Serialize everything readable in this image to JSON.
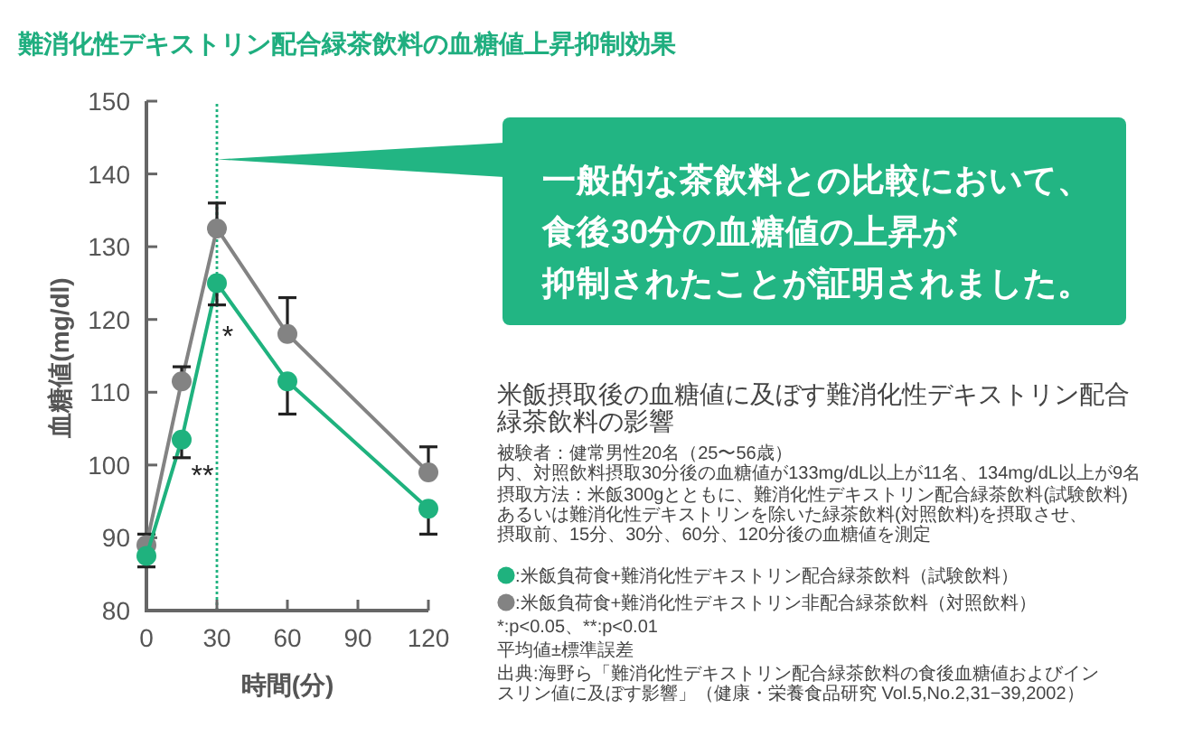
{
  "chart_data": {
    "type": "line",
    "title": "難消化性デキストリン配合緑茶飲料の血糖値上昇抑制効果",
    "subtitle": "米飯摂取後の血糖値に及ぼす難消化性デキストリン配合緑茶飲料の影響",
    "xlabel": "時間(分)",
    "ylabel": "血糖値(mg/dl)",
    "x": [
      0,
      15,
      30,
      60,
      120
    ],
    "series": [
      {
        "name": ":米飯負荷食+難消化性デキストリン配合緑茶飲料（試験飲料）",
        "color": "#1fb27e",
        "values": [
          87.5,
          103.5,
          125,
          111.5,
          94
        ],
        "errors": [
          [
            86,
            87.5
          ],
          [
            101,
            103.5
          ],
          [
            122,
            125
          ],
          [
            107,
            111.5
          ],
          [
            90.5,
            94
          ]
        ]
      },
      {
        "name": ":米飯負荷食+難消化性デキストリン非配合緑茶飲料（対照飲料）",
        "color": "#838383",
        "values": [
          89,
          111.5,
          132.5,
          118,
          99
        ],
        "errors": [
          [
            89,
            90.5
          ],
          [
            111.5,
            113.5
          ],
          [
            132.5,
            136
          ],
          [
            118,
            123
          ],
          [
            99,
            102.5
          ]
        ]
      }
    ],
    "xlim": [
      0,
      120
    ],
    "xticks": [
      0,
      30,
      60,
      90,
      120
    ],
    "ylim": [
      80,
      150
    ],
    "yticks": [
      80,
      90,
      100,
      110,
      120,
      130,
      140,
      150
    ],
    "marker": "circle",
    "line_style": "solid",
    "legend": "right",
    "ref_lines": [
      {
        "axis": "x",
        "value": 30,
        "color": "#1fb27e",
        "line_style": "dotted"
      }
    ],
    "annotations": [
      {
        "text": "一般的な茶飲料との比較において、",
        "x": 30,
        "y": 142
      },
      "食後30分の血糖値の上昇が",
      "抑制されたことが証明されました。",
      "*",
      "**",
      "被験者：健常男性20名（25〜56歳）",
      "内、対照飲料摂取30分後の血糖値が133mg/dL以上が11名、134mg/dL以上が9名",
      "摂取方法：米飯300gとともに、難消化性デキストリン配合緑茶飲料(試験飲料)",
      "あるいは難消化性デキストリンを除いた緑茶飲料(対照飲料)を摂取させ、",
      "摂取前、15分、30分、60分、120分後の血糖値を測定",
      "*:p<0.05、**:p<0.01",
      "平均値±標準誤差",
      "出典:海野ら「難消化性デキストリン配合緑茶飲料の食後血糖値およびインスリン値に及ぼす影響」（健康・栄養食品研究 Vol.5,No.2,31−39,2002）"
    ]
  }
}
